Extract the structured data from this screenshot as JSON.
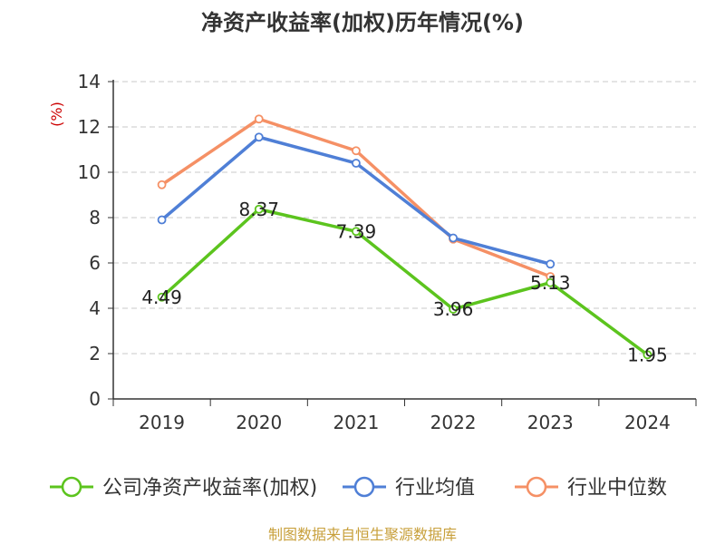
{
  "chart_data": {
    "type": "line",
    "title": "净资产收益率(加权)历年情况(%)",
    "ylabel": "(%)",
    "xlabel": "",
    "ylim": [
      0,
      14
    ],
    "yticks": [
      0,
      2,
      4,
      6,
      8,
      10,
      12,
      14
    ],
    "categories": [
      "2019",
      "2020",
      "2021",
      "2022",
      "2023",
      "2024"
    ],
    "grid": true,
    "legend_placement": "bottom",
    "series": [
      {
        "name": "公司净资产收益率(加权)",
        "color": "#5cc41e",
        "values": [
          4.49,
          8.37,
          7.39,
          3.96,
          5.13,
          1.95
        ],
        "labels": [
          "4.49",
          "8.37",
          "7.39",
          "3.96",
          "5.13",
          "1.95"
        ]
      },
      {
        "name": "行业均值",
        "color": "#4f7fd6",
        "values": [
          7.9,
          11.55,
          10.4,
          7.1,
          5.95,
          null
        ]
      },
      {
        "name": "行业中位数",
        "color": "#f59065",
        "values": [
          9.45,
          12.35,
          10.95,
          7.05,
          5.4,
          null
        ]
      }
    ],
    "source": "制图数据来自恒生聚源数据库"
  }
}
